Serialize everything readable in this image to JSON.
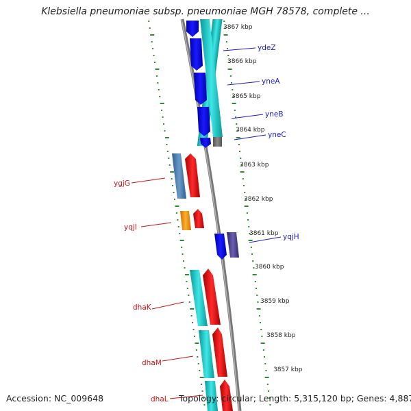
{
  "title": "Klebsiella pneumoniae subsp. pneumoniae MGH 78578, complete ...",
  "footer": {
    "accession": "Accession: NC_009648",
    "summary": "Topology: circular; Length: 5,315,120 bp; Genes: 4,887"
  },
  "scale_labels": [
    "3867 kbp",
    "3866 kbp",
    "3865 kbp",
    "3864 kbp",
    "3863 kbp",
    "3862 kbp",
    "3861 kbp",
    "3860 kbp",
    "3859 kbp",
    "3858 kbp",
    "3857 kbp"
  ],
  "genes_right": [
    "ydeZ",
    "yneA",
    "yneB",
    "yneC",
    "yqjH"
  ],
  "genes_left": [
    "ygjG",
    "yqjI",
    "dhaK",
    "dhaM",
    "dhaL"
  ],
  "colors": {
    "backbone": "#8a8a8a",
    "tick": "#2e8b2e",
    "forward_cds": "#0000ee",
    "forward_gene": "#14c8c8",
    "reverse_cds": "#ee1111",
    "reverse_gene": "#14c8c8",
    "gene_label_right": "#1a1acc",
    "gene_label_left": "#cc1111",
    "steelblue_gene": "#4a7fb0",
    "orange_gene": "#ff9900",
    "darkslate_gene": "#4b3f8f"
  }
}
